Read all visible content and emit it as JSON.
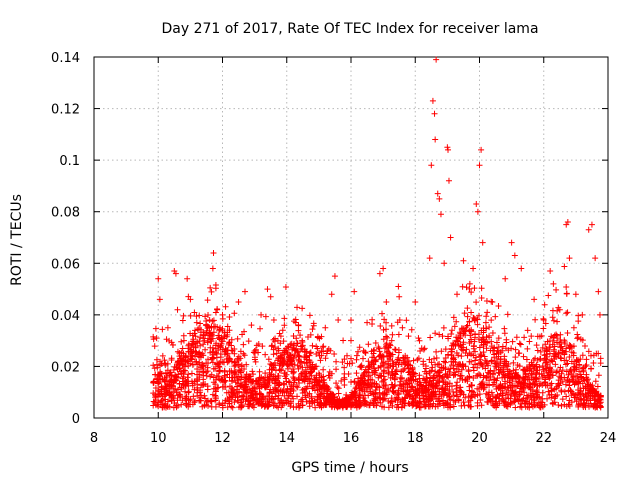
{
  "chart_data": {
    "type": "scatter",
    "title": "Day 271 of 2017, Rate Of TEC Index for receiver lama",
    "xlabel": "GPS time / hours",
    "ylabel": "ROTI / TECUs",
    "xlim": [
      8,
      24
    ],
    "ylim": [
      0,
      0.14
    ],
    "xticks": [
      8,
      10,
      12,
      14,
      16,
      18,
      20,
      22,
      24
    ],
    "yticks": [
      0,
      0.02,
      0.04,
      0.06,
      0.08,
      0.1,
      0.12,
      0.14
    ],
    "grid": true,
    "marker": "+",
    "series_color": "#ff0000",
    "series": [
      {
        "name": "ROTI",
        "points": [
          [
            9.9,
            0.009
          ],
          [
            9.95,
            0.031
          ],
          [
            10.0,
            0.054
          ],
          [
            10.05,
            0.046
          ],
          [
            10.1,
            0.021
          ],
          [
            10.2,
            0.014
          ],
          [
            10.3,
            0.035
          ],
          [
            10.4,
            0.012
          ],
          [
            10.5,
            0.057
          ],
          [
            10.55,
            0.056
          ],
          [
            10.6,
            0.042
          ],
          [
            10.7,
            0.018
          ],
          [
            10.8,
            0.03
          ],
          [
            10.9,
            0.054
          ],
          [
            11.0,
            0.046
          ],
          [
            11.1,
            0.026
          ],
          [
            11.2,
            0.037
          ],
          [
            11.3,
            0.01
          ],
          [
            11.4,
            0.02
          ],
          [
            11.5,
            0.033
          ],
          [
            11.6,
            0.038
          ],
          [
            11.7,
            0.058
          ],
          [
            11.72,
            0.064
          ],
          [
            11.8,
            0.029
          ],
          [
            11.9,
            0.015
          ],
          [
            12.0,
            0.04
          ],
          [
            12.1,
            0.012
          ],
          [
            12.2,
            0.029
          ],
          [
            12.4,
            0.008
          ],
          [
            12.5,
            0.045
          ],
          [
            12.6,
            0.02
          ],
          [
            12.7,
            0.049
          ],
          [
            12.8,
            0.016
          ],
          [
            12.9,
            0.036
          ],
          [
            13.0,
            0.026
          ],
          [
            13.2,
            0.04
          ],
          [
            13.4,
            0.05
          ],
          [
            13.5,
            0.047
          ],
          [
            13.6,
            0.038
          ],
          [
            13.8,
            0.029
          ],
          [
            14.0,
            0.01
          ],
          [
            14.2,
            0.019
          ],
          [
            14.4,
            0.024
          ],
          [
            14.6,
            0.018
          ],
          [
            14.8,
            0.028
          ],
          [
            15.0,
            0.014
          ],
          [
            15.2,
            0.035
          ],
          [
            15.4,
            0.048
          ],
          [
            15.5,
            0.055
          ],
          [
            15.6,
            0.038
          ],
          [
            15.8,
            0.015
          ],
          [
            16.0,
            0.03
          ],
          [
            16.1,
            0.049
          ],
          [
            16.3,
            0.02
          ],
          [
            16.5,
            0.037
          ],
          [
            16.7,
            0.025
          ],
          [
            16.9,
            0.056
          ],
          [
            17.0,
            0.058
          ],
          [
            17.1,
            0.045
          ],
          [
            17.3,
            0.012
          ],
          [
            17.5,
            0.047
          ],
          [
            17.6,
            0.035
          ],
          [
            17.8,
            0.022
          ],
          [
            18.0,
            0.045
          ],
          [
            18.1,
            0.031
          ],
          [
            18.3,
            0.018
          ],
          [
            18.45,
            0.062
          ],
          [
            18.5,
            0.098
          ],
          [
            18.55,
            0.123
          ],
          [
            18.6,
            0.118
          ],
          [
            18.62,
            0.108
          ],
          [
            18.65,
            0.139
          ],
          [
            18.7,
            0.087
          ],
          [
            18.75,
            0.085
          ],
          [
            18.8,
            0.079
          ],
          [
            18.9,
            0.06
          ],
          [
            19.0,
            0.105
          ],
          [
            19.02,
            0.104
          ],
          [
            19.05,
            0.092
          ],
          [
            19.1,
            0.07
          ],
          [
            19.2,
            0.039
          ],
          [
            19.3,
            0.048
          ],
          [
            19.5,
            0.061
          ],
          [
            19.7,
            0.052
          ],
          [
            19.8,
            0.058
          ],
          [
            19.9,
            0.083
          ],
          [
            19.95,
            0.08
          ],
          [
            20.0,
            0.098
          ],
          [
            20.05,
            0.104
          ],
          [
            20.1,
            0.068
          ],
          [
            20.2,
            0.037
          ],
          [
            20.4,
            0.045
          ],
          [
            20.6,
            0.031
          ],
          [
            20.8,
            0.054
          ],
          [
            21.0,
            0.068
          ],
          [
            21.1,
            0.063
          ],
          [
            21.3,
            0.058
          ],
          [
            21.5,
            0.034
          ],
          [
            21.7,
            0.046
          ],
          [
            21.9,
            0.023
          ],
          [
            22.0,
            0.038
          ],
          [
            22.2,
            0.057
          ],
          [
            22.3,
            0.052
          ],
          [
            22.5,
            0.042
          ],
          [
            22.7,
            0.075
          ],
          [
            22.75,
            0.076
          ],
          [
            22.8,
            0.062
          ],
          [
            23.0,
            0.048
          ],
          [
            23.2,
            0.04
          ],
          [
            23.4,
            0.073
          ],
          [
            23.5,
            0.075
          ],
          [
            23.6,
            0.062
          ],
          [
            23.7,
            0.049
          ],
          [
            23.75,
            0.04
          ]
        ]
      }
    ]
  }
}
